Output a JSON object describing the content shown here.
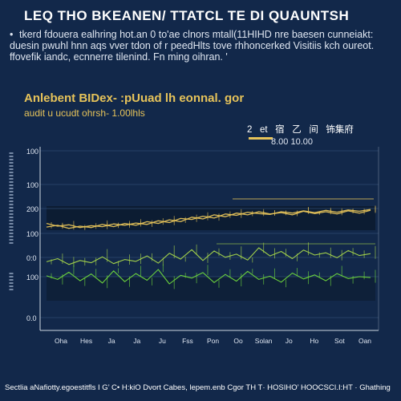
{
  "page": {
    "title": "LEQ THO BKEANEN/ TTATCL TE DI QUAUNTSH",
    "bullet": "tkerd fdouera ealhring hot.an 0 to'ae clnors mtall(11HIHD nre baesen cunneiakt: duesin pwuhl hnn aqs vver tdon of r peedHlts tove rhhoncerked Visitiis kch oureot. ffovefik iandc, ecnnerre tilenind. Fn ming oihran. '",
    "subtitle": "Anlebent BIDex- :pUuad lh eonnal. gor",
    "subnote": "audit u ucudt ohrsh- 1.00lhls",
    "legend_label": "2   et   宿   乙   间   钸集府",
    "legend_range": "8.00 10.00",
    "footer": "Sectlia aNafiotty.egoestitfls I G’ C• H:kiO Dvort Cabes, lepem.enb Cgor TH T· HOSIHO’ HOOCSCI.I:HT · Ghathing",
    "colors": {
      "background": "#12284a",
      "gold": "#e6c35a",
      "lime": "#a9d84a",
      "green": "#6fd83c",
      "axis": "#cfd8e3"
    }
  },
  "chart_data": {
    "type": "line",
    "y_ticks": [
      "100",
      "100",
      "200",
      "100",
      "0:0",
      "100",
      "0.0"
    ],
    "x_labels": [
      "Oha",
      "Hes",
      "Ja",
      "Ja",
      "Ju",
      "Fss",
      "Pon",
      "Oo",
      "Solan",
      "Jo",
      "Ho",
      "Sot",
      "Oan"
    ],
    "series": [
      {
        "color": "#e6c35a",
        "values": [
          23,
          22.4,
          22.7,
          22.1,
          22.5,
          22.3,
          22.9,
          22.6,
          23.1,
          22.8,
          23.6,
          23.2,
          24.1,
          23.9,
          24.6,
          24.2,
          25.1,
          24.8,
          25.5,
          25.2,
          25.0,
          25.6,
          25.3,
          25.8,
          25.4,
          25.9,
          25.5,
          26.0,
          25.7,
          26.1
        ]
      },
      {
        "color": "#e6c35a",
        "values": [
          22.2,
          22.6,
          21.9,
          22.4,
          22.1,
          22.8,
          22.3,
          23.0,
          22.6,
          23.4,
          23.0,
          23.8,
          23.4,
          24.4,
          24.0,
          24.9,
          24.5,
          25.3,
          24.9,
          25.6,
          25.1,
          25.4,
          24.9,
          25.7,
          25.2,
          25.6,
          25.1,
          25.8,
          25.3,
          25.9
        ]
      },
      {
        "color": "#a9d84a",
        "values": [
          14.5,
          15.2,
          13.9,
          14.8,
          14.3,
          15.6,
          14.1,
          15.0,
          14.6,
          15.8,
          14.2,
          16.4,
          15.1,
          17.2,
          14.8,
          16.9,
          15.5,
          16.2,
          14.9,
          17.6,
          15.8,
          16.8,
          15.2,
          17.1,
          16.0,
          16.5,
          15.4,
          17.0,
          15.9,
          16.3
        ]
      },
      {
        "color": "#6fd83c",
        "values": [
          11.4,
          10.6,
          12.2,
          10.3,
          11.8,
          9.8,
          12.5,
          10.1,
          11.9,
          10.4,
          12.8,
          9.6,
          11.5,
          10.9,
          12.1,
          9.9,
          11.7,
          10.2,
          12.4,
          10.6,
          11.3,
          10.0,
          12.0,
          10.7,
          11.6,
          10.3,
          11.9,
          10.8,
          11.2,
          11.0
        ]
      }
    ],
    "ylim": [
      0,
      40
    ],
    "grid": false
  }
}
